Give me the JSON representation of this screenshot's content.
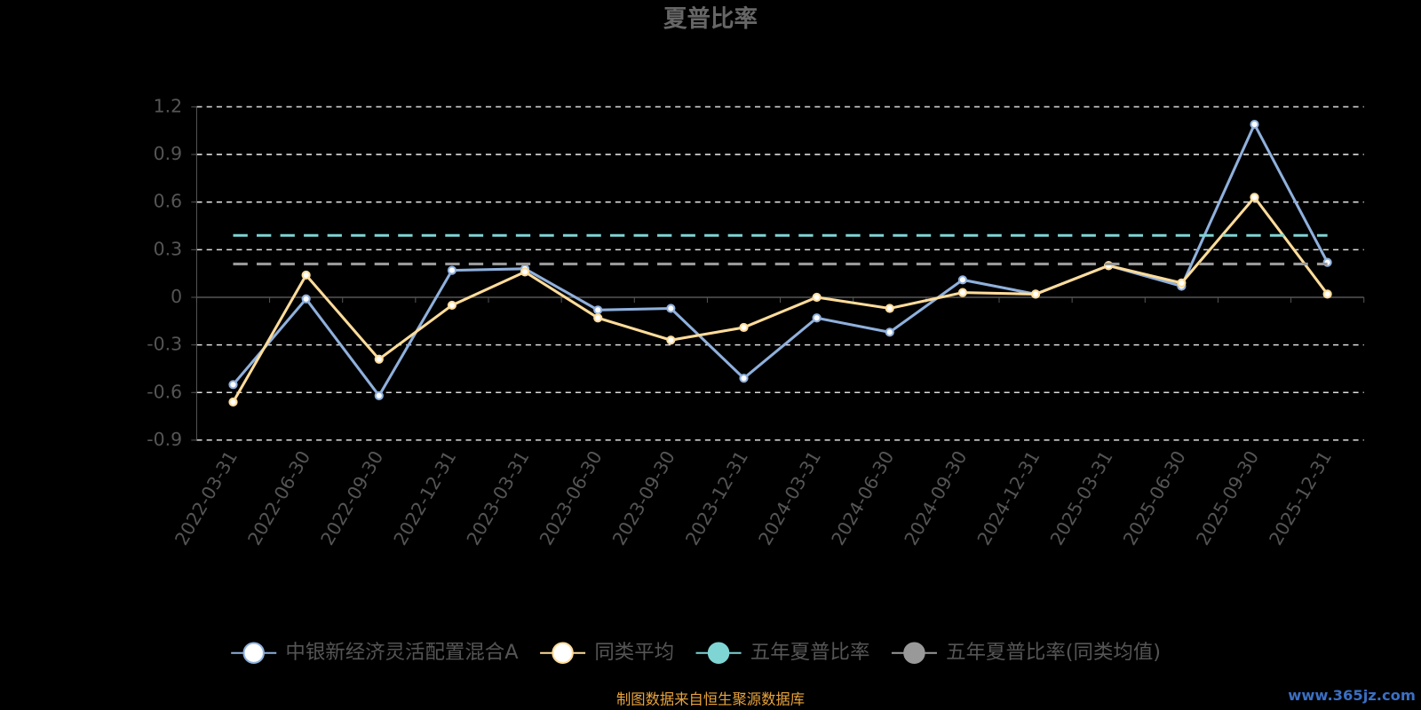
{
  "chart_data": {
    "type": "line",
    "title": "夏普比率",
    "categories": [
      "2022-03-31",
      "2022-06-30",
      "2022-09-30",
      "2022-12-31",
      "2023-03-31",
      "2023-06-30",
      "2023-09-30",
      "2023-12-31",
      "2024-03-31",
      "2024-06-30",
      "2024-09-30",
      "2024-12-31",
      "2025-03-31",
      "2025-06-30",
      "2025-09-30",
      "2025-12-31"
    ],
    "series": [
      {
        "name": "中银新经济灵活配置混合A",
        "color": "#8fb0dc",
        "values": [
          -0.55,
          -0.01,
          -0.62,
          0.17,
          0.18,
          -0.08,
          -0.07,
          -0.51,
          -0.13,
          -0.22,
          0.11,
          0.02,
          0.2,
          0.07,
          1.09,
          0.22
        ]
      },
      {
        "name": "同类平均",
        "color": "#ffdc9a",
        "values": [
          -0.66,
          0.14,
          -0.39,
          -0.05,
          0.16,
          -0.13,
          -0.27,
          -0.19,
          0,
          -0.07,
          0.03,
          0.02,
          0.2,
          0.09,
          0.63,
          0.02
        ]
      },
      {
        "name": "五年夏普比率",
        "color": "#7fd4d4",
        "dashed": true,
        "values": [
          0.39,
          0.39,
          0.39,
          0.39,
          0.39,
          0.39,
          0.39,
          0.39,
          0.39,
          0.39,
          0.39,
          0.39,
          0.39,
          0.39,
          0.39,
          0.39
        ]
      },
      {
        "name": "五年夏普比率(同类均值)",
        "color": "#999999",
        "dashed": true,
        "values": [
          0.21,
          0.21,
          0.21,
          0.21,
          0.21,
          0.21,
          0.21,
          0.21,
          0.21,
          0.21,
          0.21,
          0.21,
          0.21,
          0.21,
          0.21,
          0.21
        ]
      }
    ],
    "ylim": [
      -0.9,
      1.2
    ],
    "yticks": [
      -0.9,
      -0.6,
      -0.3,
      0,
      0.3,
      0.6,
      0.9,
      1.2
    ],
    "grid": true,
    "legend": "bottom",
    "source": "制图数据来自恒生聚源数据库",
    "watermark": "www.365jz.com"
  }
}
